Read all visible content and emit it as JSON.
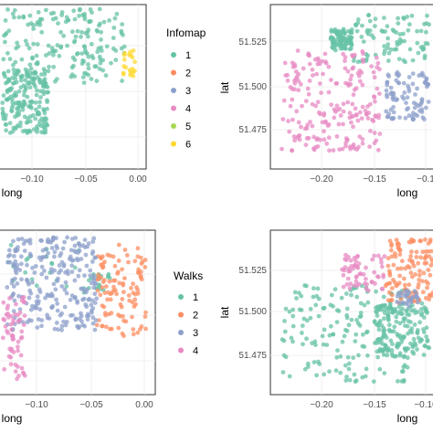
{
  "panels": [
    {
      "id": "infomap-left",
      "xlabel": "long",
      "ylabel": "",
      "xticks": [
        "−0.10",
        "−0.05",
        "0.00"
      ],
      "yticks": []
    },
    {
      "id": "infomap-right",
      "xlabel": "long",
      "ylabel": "lat",
      "xticks": [
        "−0.20",
        "−0.15",
        "−0.1"
      ],
      "yticks": [
        "51.525",
        "51.500",
        "51.475"
      ]
    },
    {
      "id": "walks-left",
      "xlabel": "long",
      "ylabel": "",
      "xticks": [
        "−0.10",
        "−0.05",
        "0.00"
      ],
      "yticks": []
    },
    {
      "id": "walks-right",
      "xlabel": "long",
      "ylabel": "lat",
      "xticks": [
        "−0.20",
        "−0.15",
        "−0.10"
      ],
      "yticks": [
        "51.525",
        "51.500",
        "51.475"
      ]
    }
  ],
  "legends": [
    {
      "title": "Infomap",
      "entries": [
        {
          "label": "1",
          "color": "#66c2a5"
        },
        {
          "label": "2",
          "color": "#fc8d62"
        },
        {
          "label": "3",
          "color": "#8da0cb"
        },
        {
          "label": "4",
          "color": "#e78ac3"
        },
        {
          "label": "5",
          "color": "#a6d854"
        },
        {
          "label": "6",
          "color": "#ffd92f"
        }
      ]
    },
    {
      "title": "Walks",
      "entries": [
        {
          "label": "1",
          "color": "#66c2a5"
        },
        {
          "label": "2",
          "color": "#fc8d62"
        },
        {
          "label": "3",
          "color": "#8da0cb"
        },
        {
          "label": "4",
          "color": "#e78ac3"
        }
      ]
    }
  ],
  "chart_data": [
    {
      "type": "scatter",
      "xlabel": "long",
      "xlim": [
        -0.17,
        0.005
      ],
      "ylim": [
        51.43,
        51.545
      ],
      "grid": true,
      "legend": "right",
      "series": [
        {
          "name": "1",
          "color": "#66c2a5",
          "n": 380,
          "regions": [
            [
              -0.165,
              -0.02,
              51.49,
              51.542
            ],
            [
              -0.165,
              -0.11,
              51.455,
              51.5
            ]
          ]
        },
        {
          "name": "6",
          "color": "#ffd92f",
          "n": 20,
          "regions": [
            [
              -0.022,
              -0.006,
              51.495,
              51.515
            ]
          ]
        }
      ]
    },
    {
      "type": "scatter",
      "xlabel": "long",
      "ylabel": "lat",
      "xlim": [
        -0.245,
        -0.095
      ],
      "ylim": [
        51.455,
        51.545
      ],
      "grid": true,
      "series": [
        {
          "name": "1",
          "color": "#66c2a5",
          "n": 170,
          "regions": [
            [
              -0.17,
              -0.1,
              51.513,
              51.54
            ],
            [
              -0.19,
              -0.17,
              51.52,
              51.532
            ]
          ]
        },
        {
          "name": "3",
          "color": "#8da0cb",
          "n": 90,
          "regions": [
            [
              -0.14,
              -0.1,
              51.482,
              51.508
            ]
          ]
        },
        {
          "name": "4",
          "color": "#e78ac3",
          "n": 210,
          "regions": [
            [
              -0.235,
              -0.145,
              51.465,
              51.52
            ]
          ]
        }
      ]
    },
    {
      "type": "scatter",
      "xlabel": "long",
      "xlim": [
        -0.17,
        0.005
      ],
      "ylim": [
        51.43,
        51.545
      ],
      "grid": true,
      "legend": "right",
      "series": [
        {
          "name": "1",
          "color": "#66c2a5",
          "n": 40,
          "regions": [
            [
              -0.16,
              -0.07,
              51.505,
              51.535
            ],
            [
              -0.075,
              -0.045,
              51.5,
              51.515
            ]
          ]
        },
        {
          "name": "2",
          "color": "#fc8d62",
          "n": 110,
          "regions": [
            [
              -0.06,
              -0.005,
              51.47,
              51.535
            ]
          ]
        },
        {
          "name": "3",
          "color": "#8da0cb",
          "n": 260,
          "regions": [
            [
              -0.16,
              -0.06,
              51.475,
              51.54
            ]
          ]
        },
        {
          "name": "4",
          "color": "#e78ac3",
          "n": 60,
          "regions": [
            [
              -0.165,
              -0.14,
              51.44,
              51.5
            ]
          ]
        }
      ]
    },
    {
      "type": "scatter",
      "xlabel": "long",
      "ylabel": "lat",
      "xlim": [
        -0.245,
        -0.095
      ],
      "ylim": [
        51.455,
        51.545
      ],
      "grid": true,
      "series": [
        {
          "name": "1",
          "color": "#66c2a5",
          "n": 330,
          "regions": [
            [
              -0.235,
              -0.12,
              51.462,
              51.515
            ],
            [
              -0.15,
              -0.1,
              51.475,
              51.505
            ]
          ]
        },
        {
          "name": "2",
          "color": "#fc8d62",
          "n": 130,
          "regions": [
            [
              -0.14,
              -0.095,
              51.505,
              51.54
            ]
          ]
        },
        {
          "name": "3",
          "color": "#8da0cb",
          "n": 30,
          "regions": [
            [
              -0.13,
              -0.11,
              51.503,
              51.512
            ]
          ]
        },
        {
          "name": "4",
          "color": "#e78ac3",
          "n": 60,
          "regions": [
            [
              -0.18,
              -0.14,
              51.512,
              51.532
            ]
          ]
        }
      ]
    }
  ]
}
